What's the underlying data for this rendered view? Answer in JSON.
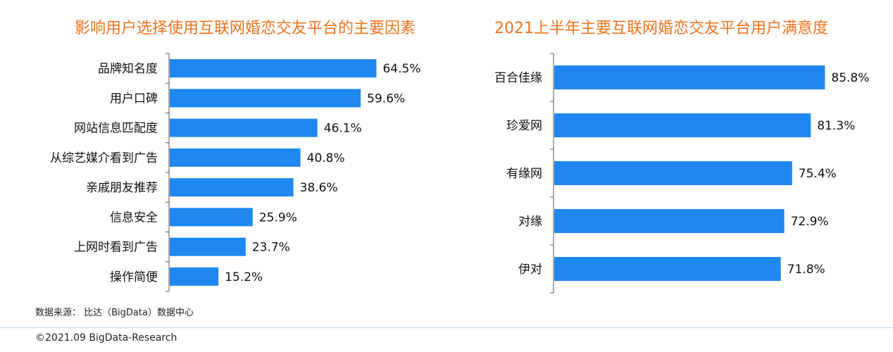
{
  "chart_data": [
    {
      "type": "bar",
      "orientation": "horizontal",
      "title": "影响用户选择使用互联网婚恋交友平台的主要因素",
      "categories": [
        "品牌知名度",
        "用户口碑",
        "网站信息匹配度",
        "从综艺媒介看到广告",
        "亲戚朋友推荐",
        "信息安全",
        "上网时看到广告",
        "操作简便"
      ],
      "values": [
        64.5,
        59.6,
        46.1,
        40.8,
        38.6,
        25.9,
        23.7,
        15.2
      ],
      "value_labels": [
        "64.5%",
        "59.6%",
        "46.1%",
        "40.8%",
        "38.6%",
        "25.9%",
        "23.7%",
        "15.2%"
      ],
      "xlim": [
        0,
        100
      ],
      "bar_color": "#1e88f0",
      "title_color": "#f0731f"
    },
    {
      "type": "bar",
      "orientation": "horizontal",
      "title": "2021上半年主要互联网婚恋交友平台用户满意度",
      "categories": [
        "百合佳缘",
        "珍爱网",
        "有缘网",
        "对缘",
        "伊对"
      ],
      "values": [
        85.8,
        81.3,
        75.4,
        72.9,
        71.8
      ],
      "value_labels": [
        "85.8%",
        "81.3%",
        "75.4%",
        "72.9%",
        "71.8%"
      ],
      "xlim": [
        0,
        100
      ],
      "bar_color": "#1e88f0",
      "title_color": "#f0731f"
    }
  ],
  "footer": {
    "source": "数据来源： 比达（BigData）数据中心",
    "copyright": "©2021.09 BigData-Research"
  }
}
